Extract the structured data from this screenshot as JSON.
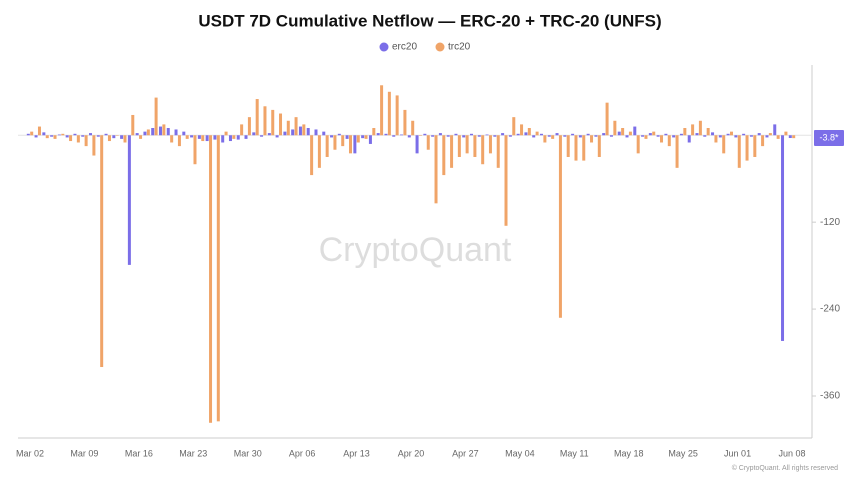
{
  "chart_data": {
    "type": "bar",
    "title": "USDT 7D Cumulative Netflow — ERC-20 + TRC-20 (UNFS)",
    "categories": [
      "Mar 02",
      null,
      null,
      null,
      null,
      null,
      null,
      "Mar 09",
      null,
      null,
      null,
      null,
      null,
      null,
      "Mar 16",
      null,
      null,
      null,
      null,
      null,
      null,
      "Mar 23",
      null,
      null,
      null,
      null,
      null,
      null,
      "Mar 30",
      null,
      null,
      null,
      null,
      null,
      null,
      "Apr 06",
      null,
      null,
      null,
      null,
      null,
      null,
      "Apr 13",
      null,
      null,
      null,
      null,
      null,
      null,
      "Apr 20",
      null,
      null,
      null,
      null,
      null,
      null,
      "Apr 27",
      null,
      null,
      null,
      null,
      null,
      null,
      "May 04",
      null,
      null,
      null,
      null,
      null,
      null,
      "May 11",
      null,
      null,
      null,
      null,
      null,
      null,
      "May 18",
      null,
      null,
      null,
      null,
      null,
      null,
      "May 25",
      null,
      null,
      null,
      null,
      null,
      null,
      "Jun 01",
      null,
      null,
      null,
      null,
      null,
      null,
      "Jun 08"
    ],
    "series": [
      {
        "name": "erc20",
        "color": "#7b6ee8",
        "values": [
          2,
          -3,
          4,
          -2,
          1,
          -3,
          2,
          -2,
          3,
          -2,
          2,
          -4,
          -5,
          -179,
          3,
          5,
          10,
          12,
          10,
          8,
          5,
          -3,
          -5,
          -8,
          -6,
          -10,
          -8,
          -6,
          -5,
          4,
          -2,
          3,
          -3,
          5,
          8,
          12,
          10,
          8,
          5,
          -3,
          2,
          -5,
          -25,
          -4,
          -12,
          3,
          2,
          -2,
          1,
          -3,
          -25,
          2,
          -2,
          3,
          -2,
          2,
          -3,
          2,
          -2,
          1,
          -2,
          3,
          -2,
          2,
          4,
          -3,
          2,
          -2,
          3,
          -2,
          2,
          -3,
          2,
          -2,
          3,
          -2,
          5,
          -3,
          12,
          -2,
          3,
          -2,
          2,
          -3,
          2,
          -10,
          3,
          -2,
          4,
          -3,
          2,
          -3,
          2,
          -2,
          3,
          -3,
          15,
          -284,
          -3.8
        ]
      },
      {
        "name": "trc20",
        "color": "#f0a468",
        "values": [
          5,
          12,
          -4,
          -5,
          2,
          -8,
          -10,
          -15,
          -28,
          -320,
          -8,
          0,
          -10,
          28,
          -5,
          8,
          52,
          15,
          -10,
          -15,
          -5,
          -40,
          -8,
          -397,
          -395,
          5,
          -5,
          15,
          25,
          50,
          40,
          35,
          30,
          20,
          25,
          15,
          -55,
          -45,
          -30,
          -20,
          -15,
          -25,
          -10,
          -5,
          10,
          69,
          60,
          55,
          35,
          20,
          0,
          -20,
          -94,
          -55,
          -45,
          -30,
          -25,
          -30,
          -40,
          -25,
          -45,
          -125,
          25,
          15,
          10,
          5,
          -10,
          -5,
          -252,
          -30,
          -35,
          -35,
          -10,
          -30,
          45,
          20,
          10,
          5,
          -25,
          -5,
          5,
          -10,
          -15,
          -45,
          10,
          15,
          20,
          10,
          -10,
          -25,
          5,
          -45,
          -35,
          -30,
          -15,
          3,
          -5,
          5,
          -4
        ]
      }
    ],
    "ylim": [
      -418,
      97
    ],
    "yticks": [
      -360,
      -240,
      -120
    ],
    "grid": false,
    "annotation": "-3.8*",
    "watermark": "CryptoQuant",
    "credit": "© CryptoQuant. All rights reserved"
  }
}
